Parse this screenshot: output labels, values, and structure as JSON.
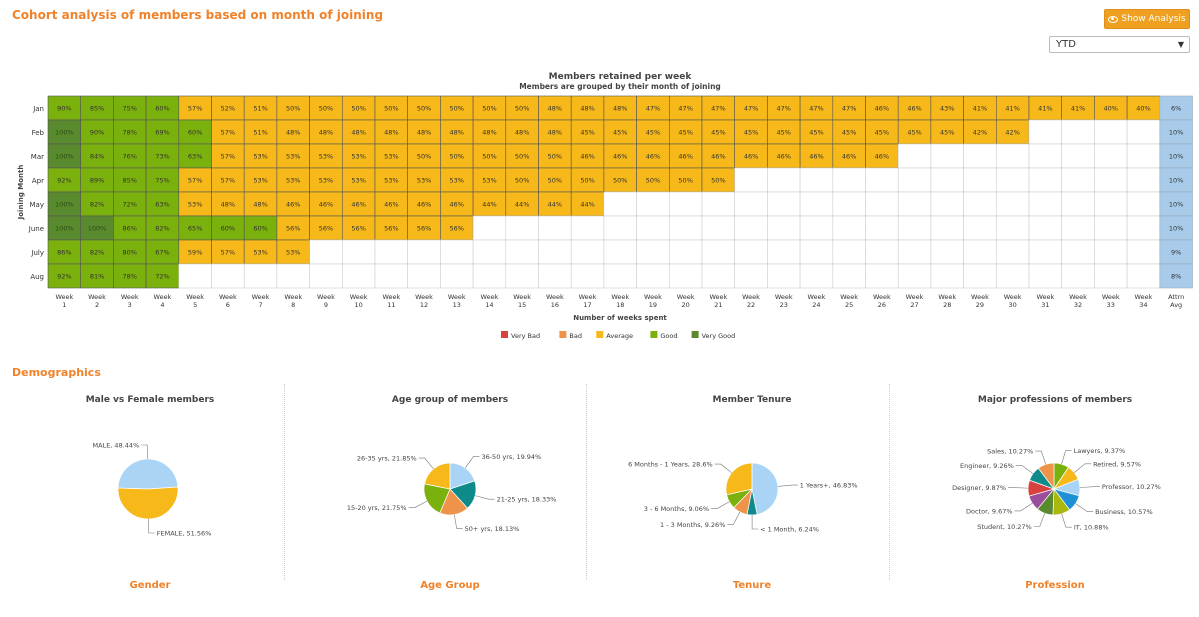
{
  "page_title": "Cohort analysis of members based on month of joining",
  "show_analysis_label": "Show Analysis",
  "period_select": {
    "value": "YTD"
  },
  "cohort": {
    "title": "Members retained per week",
    "subtitle": "Members are grouped by their month of joining",
    "y_axis_label": "Joining Month",
    "x_axis_label": "Number of weeks spent",
    "week_labels": [
      [
        "Week",
        "1"
      ],
      [
        "Week",
        "2"
      ],
      [
        "Week",
        "3"
      ],
      [
        "Week",
        "4"
      ],
      [
        "Week",
        "5"
      ],
      [
        "Week",
        "6"
      ],
      [
        "Week",
        "7"
      ],
      [
        "Week",
        "8"
      ],
      [
        "Week",
        "9"
      ],
      [
        "Week",
        "10"
      ],
      [
        "Week",
        "11"
      ],
      [
        "Week",
        "12"
      ],
      [
        "Week",
        "13"
      ],
      [
        "Week",
        "14"
      ],
      [
        "Week",
        "15"
      ],
      [
        "Week",
        "16"
      ],
      [
        "Week",
        "17"
      ],
      [
        "Week",
        "18"
      ],
      [
        "Week",
        "19"
      ],
      [
        "Week",
        "20"
      ],
      [
        "Week",
        "21"
      ],
      [
        "Week",
        "22"
      ],
      [
        "Week",
        "23"
      ],
      [
        "Week",
        "24"
      ],
      [
        "Week",
        "25"
      ],
      [
        "Week",
        "26"
      ],
      [
        "Week",
        "27"
      ],
      [
        "Week",
        "28"
      ],
      [
        "Week",
        "29"
      ],
      [
        "Week",
        "30"
      ],
      [
        "Week",
        "31"
      ],
      [
        "Week",
        "32"
      ],
      [
        "Week",
        "33"
      ],
      [
        "Week",
        "34"
      ],
      [
        "Attrn",
        "Avg"
      ]
    ],
    "colors": {
      "very_bad": "#d9413f",
      "bad": "#f0934a",
      "average": "#f7b819",
      "good": "#7ab10c",
      "very_good": "#5a8a2e",
      "avg": "#a8cbea",
      "empty": "#ffffff"
    },
    "legend": [
      {
        "label": "Very Bad",
        "color": "#d9413f"
      },
      {
        "label": "Bad",
        "color": "#f0934a"
      },
      {
        "label": "Average",
        "color": "#f7b819"
      },
      {
        "label": "Good",
        "color": "#7ab10c"
      },
      {
        "label": "Very Good",
        "color": "#5a8a2e"
      }
    ],
    "rows": [
      {
        "month": "Jan",
        "values": [
          90,
          85,
          75,
          60,
          57,
          52,
          51,
          50,
          50,
          50,
          50,
          50,
          50,
          50,
          50,
          48,
          48,
          48,
          47,
          47,
          47,
          47,
          47,
          47,
          47,
          46,
          46,
          43,
          41,
          41,
          41,
          41,
          40,
          40
        ],
        "avg": "6%"
      },
      {
        "month": "Feb",
        "values": [
          100,
          90,
          78,
          69,
          60,
          57,
          51,
          48,
          48,
          48,
          48,
          48,
          48,
          48,
          48,
          48,
          45,
          45,
          45,
          45,
          45,
          45,
          45,
          45,
          45,
          45,
          45,
          45,
          42,
          42
        ],
        "avg": "10%"
      },
      {
        "month": "Mar",
        "values": [
          100,
          84,
          76,
          73,
          63,
          57,
          53,
          53,
          53,
          53,
          53,
          50,
          50,
          50,
          50,
          50,
          46,
          46,
          46,
          46,
          46,
          46,
          46,
          46,
          46,
          46
        ],
        "avg": "10%"
      },
      {
        "month": "Apr",
        "values": [
          92,
          89,
          85,
          75,
          57,
          57,
          53,
          53,
          53,
          53,
          53,
          53,
          53,
          53,
          50,
          50,
          50,
          50,
          50,
          50,
          50
        ],
        "avg": "10%"
      },
      {
        "month": "May",
        "values": [
          100,
          82,
          72,
          63,
          53,
          48,
          48,
          46,
          46,
          46,
          46,
          46,
          46,
          44,
          44,
          44,
          44
        ],
        "avg": "10%"
      },
      {
        "month": "June",
        "values": [
          100,
          100,
          86,
          82,
          65,
          60,
          60,
          56,
          56,
          56,
          56,
          56,
          56
        ],
        "avg": "10%"
      },
      {
        "month": "July",
        "values": [
          86,
          82,
          80,
          67,
          59,
          57,
          53,
          53
        ],
        "avg": "9%"
      },
      {
        "month": "Aug",
        "values": [
          92,
          81,
          78,
          72
        ],
        "avg": "8%"
      }
    ]
  },
  "demographics": {
    "title": "Demographics",
    "charts": [
      {
        "title": "Male vs Female members",
        "link": "Gender",
        "slices": [
          {
            "label": "MALE, 48.44%",
            "value": 48.44,
            "color": "#a9d4f5"
          },
          {
            "label": "FEMALE, 51.56%",
            "value": 51.56,
            "color": "#f7b819"
          }
        ]
      },
      {
        "title": "Age group of members",
        "link": "Age Group",
        "slices": [
          {
            "label": "36-50 yrs, 19.94%",
            "value": 19.94,
            "color": "#a9d4f5"
          },
          {
            "label": "21-25 yrs, 18.33%",
            "value": 18.33,
            "color": "#0f8a8a"
          },
          {
            "label": "50+ yrs, 18.13%",
            "value": 18.13,
            "color": "#f0934a"
          },
          {
            "label": "15-20 yrs, 21.75%",
            "value": 21.75,
            "color": "#7ab10c"
          },
          {
            "label": "26-35 yrs, 21.85%",
            "value": 21.85,
            "color": "#f7b819"
          }
        ]
      },
      {
        "title": "Member Tenure",
        "link": "Tenure",
        "slices": [
          {
            "label": "1 Years+, 46.83%",
            "value": 46.83,
            "color": "#a9d4f5"
          },
          {
            "label": "< 1 Month, 6.24%",
            "value": 6.24,
            "color": "#0f8a8a"
          },
          {
            "label": "1 - 3 Months, 9.26%",
            "value": 9.26,
            "color": "#f0934a"
          },
          {
            "label": "3 - 6 Months, 9.06%",
            "value": 9.06,
            "color": "#7ab10c"
          },
          {
            "label": "6 Months - 1 Years, 28.6%",
            "value": 28.6,
            "color": "#f7b819"
          }
        ]
      },
      {
        "title": "Major professions of members",
        "link": "Profession",
        "slices": [
          {
            "label": "Lawyers, 9.37%",
            "value": 9.37,
            "color": "#7ab10c"
          },
          {
            "label": "Retired, 9.57%",
            "value": 9.57,
            "color": "#f7b819"
          },
          {
            "label": "Professor, 10.27%",
            "value": 10.27,
            "color": "#a9d4f5"
          },
          {
            "label": "Business, 10.57%",
            "value": 10.57,
            "color": "#1e90d6"
          },
          {
            "label": "IT, 10.88%",
            "value": 10.88,
            "color": "#a8b80c"
          },
          {
            "label": "Student, 10.27%",
            "value": 10.27,
            "color": "#5a8a2e"
          },
          {
            "label": "Doctor, 9.67%",
            "value": 9.67,
            "color": "#9b4f9b"
          },
          {
            "label": "Designer, 9.87%",
            "value": 9.87,
            "color": "#d9413f"
          },
          {
            "label": "Engineer, 9.26%",
            "value": 9.26,
            "color": "#0f8a8a"
          },
          {
            "label": "Sales, 10.27%",
            "value": 10.27,
            "color": "#f0934a"
          }
        ]
      }
    ]
  }
}
